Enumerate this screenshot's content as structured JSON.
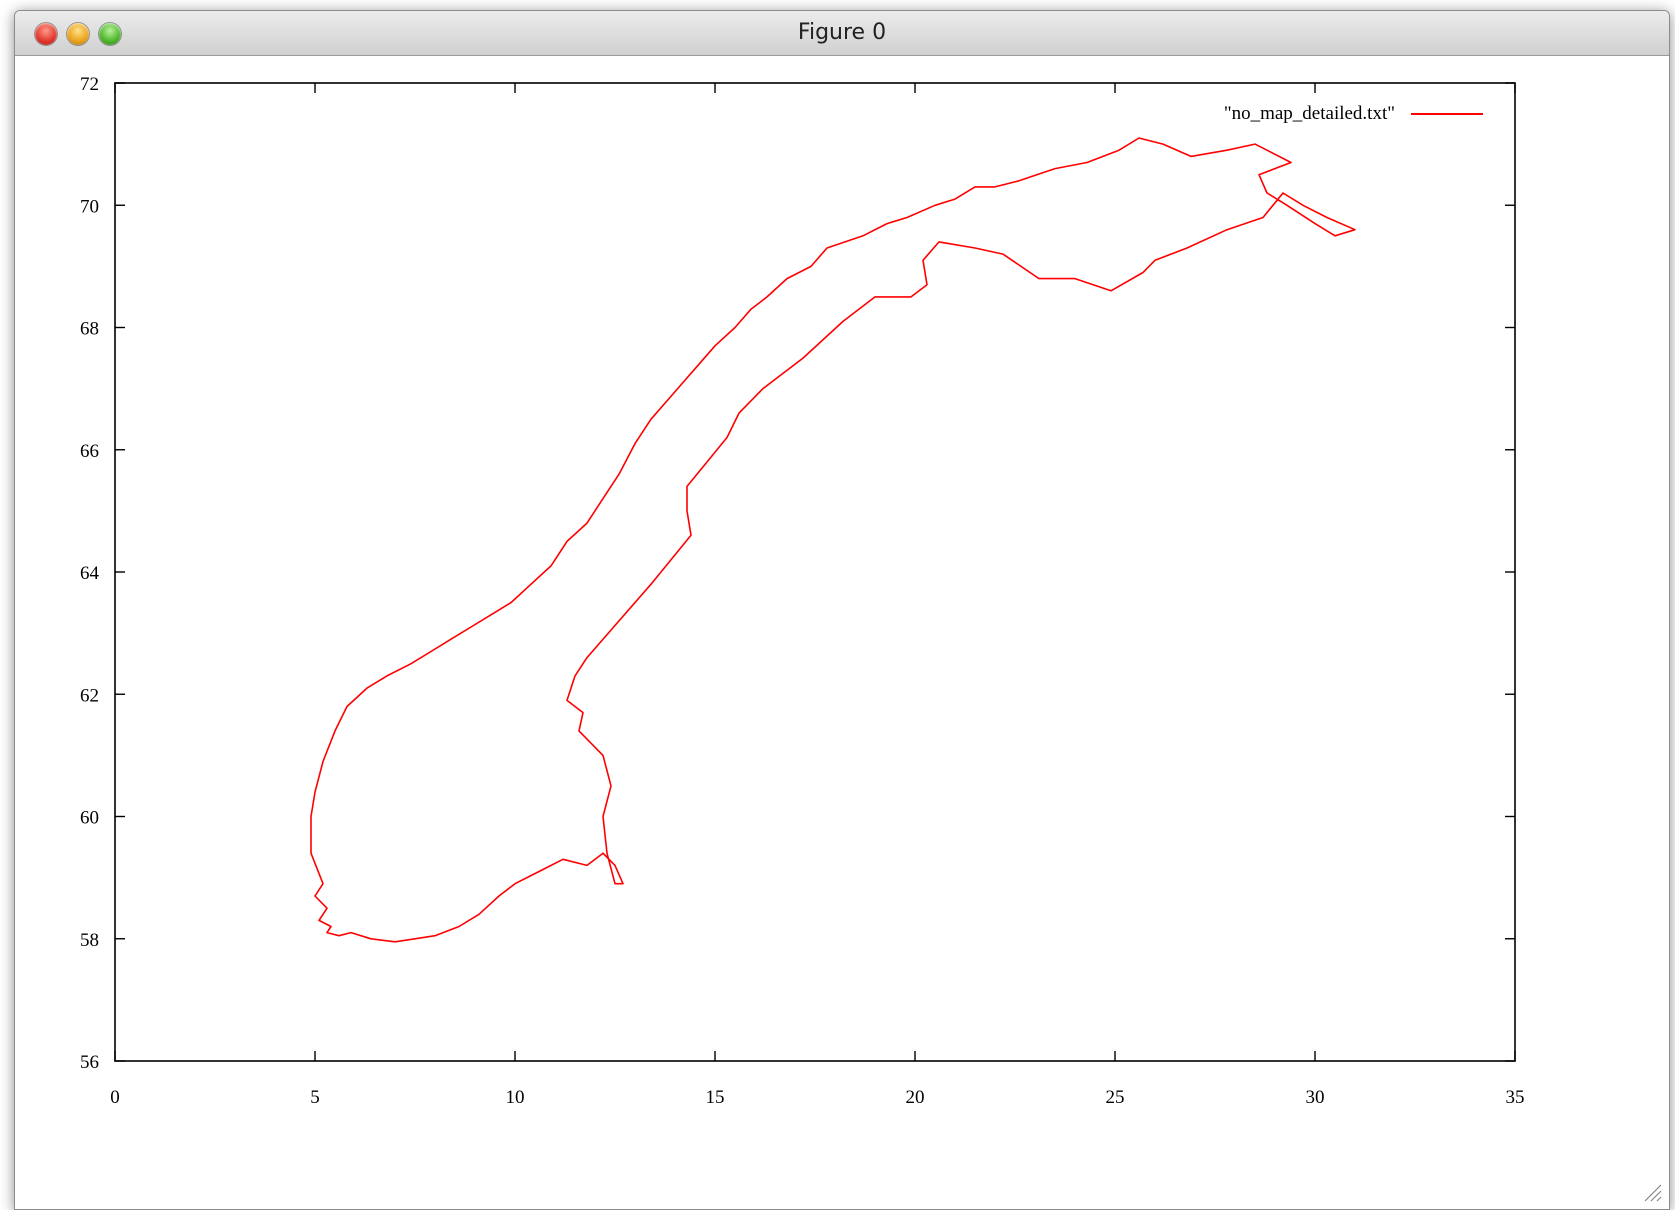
{
  "window": {
    "title": "Figure 0",
    "buttons": [
      "close",
      "minimize",
      "zoom"
    ]
  },
  "chart_data": {
    "type": "line",
    "title": "",
    "xlabel": "",
    "ylabel": "",
    "xlim": [
      0,
      35
    ],
    "ylim": [
      56,
      72
    ],
    "x_ticks": [
      "0",
      "5",
      "10",
      "15",
      "20",
      "25",
      "30",
      "35"
    ],
    "y_ticks": [
      "56",
      "58",
      "60",
      "62",
      "64",
      "66",
      "68",
      "70",
      "72"
    ],
    "grid": false,
    "legend_position": "top-right",
    "series": [
      {
        "name": "\"no_map_detailed.txt\"",
        "color": "#ff0000",
        "x": [
          4.9,
          5.2,
          5.0,
          5.3,
          5.1,
          5.4,
          5.3,
          5.6,
          5.9,
          6.4,
          7.0,
          7.5,
          8.0,
          8.6,
          9.1,
          9.6,
          10.0,
          10.6,
          11.2,
          11.8,
          12.2,
          12.5,
          12.7,
          12.5,
          12.3,
          12.2,
          12.4,
          12.2,
          11.6,
          11.7,
          11.3,
          11.5,
          11.8,
          12.6,
          13.4,
          13.9,
          14.4,
          14.3,
          14.3,
          14.8,
          15.3,
          15.6,
          16.2,
          17.2,
          18.2,
          19.0,
          19.9,
          20.3,
          20.2,
          20.6,
          21.5,
          22.2,
          23.1,
          24.0,
          24.9,
          25.7,
          26.0,
          26.8,
          27.8,
          28.7,
          29.2,
          29.7,
          30.3,
          31.0,
          30.5,
          30.0,
          29.3,
          28.8,
          28.6,
          29.4,
          28.5,
          27.8,
          26.9,
          26.2,
          25.6,
          25.1,
          24.3,
          23.5,
          22.6,
          22.0,
          21.5,
          21.0,
          20.5,
          19.8,
          19.3,
          18.7,
          17.8,
          17.4,
          16.8,
          16.3,
          15.9,
          15.5,
          15.0,
          14.6,
          14.2,
          13.8,
          13.4,
          13.0,
          12.6,
          12.2,
          11.8,
          11.3,
          10.9,
          10.4,
          9.9,
          9.4,
          8.9,
          8.4,
          7.9,
          7.4,
          6.8,
          6.3,
          5.8,
          5.5,
          5.2,
          5.0,
          4.9
        ],
        "y": [
          59.4,
          58.9,
          58.7,
          58.5,
          58.3,
          58.2,
          58.1,
          58.05,
          58.1,
          58.0,
          57.95,
          58.0,
          58.05,
          58.2,
          58.4,
          58.7,
          58.9,
          59.1,
          59.3,
          59.2,
          59.4,
          59.2,
          58.9,
          58.9,
          59.4,
          60.0,
          60.5,
          61.0,
          61.4,
          61.7,
          61.9,
          62.3,
          62.6,
          63.2,
          63.8,
          64.2,
          64.6,
          65.0,
          65.4,
          65.8,
          66.2,
          66.6,
          67.0,
          67.5,
          68.1,
          68.5,
          68.5,
          68.7,
          69.1,
          69.4,
          69.3,
          69.2,
          68.8,
          68.8,
          68.6,
          68.9,
          69.1,
          69.3,
          69.6,
          69.8,
          70.2,
          70.0,
          69.8,
          69.6,
          69.5,
          69.7,
          70.0,
          70.2,
          70.5,
          70.7,
          71.0,
          70.9,
          70.8,
          71.0,
          71.1,
          70.9,
          70.7,
          70.6,
          70.4,
          70.3,
          70.3,
          70.1,
          70.0,
          69.8,
          69.7,
          69.5,
          69.3,
          69.0,
          68.8,
          68.5,
          68.3,
          68.0,
          67.7,
          67.4,
          67.1,
          66.8,
          66.5,
          66.1,
          65.6,
          65.2,
          64.8,
          64.5,
          64.1,
          63.8,
          63.5,
          63.3,
          63.1,
          62.9,
          62.7,
          62.5,
          62.3,
          62.1,
          61.8,
          61.4,
          60.9,
          60.4,
          60.0
        ]
      }
    ]
  }
}
